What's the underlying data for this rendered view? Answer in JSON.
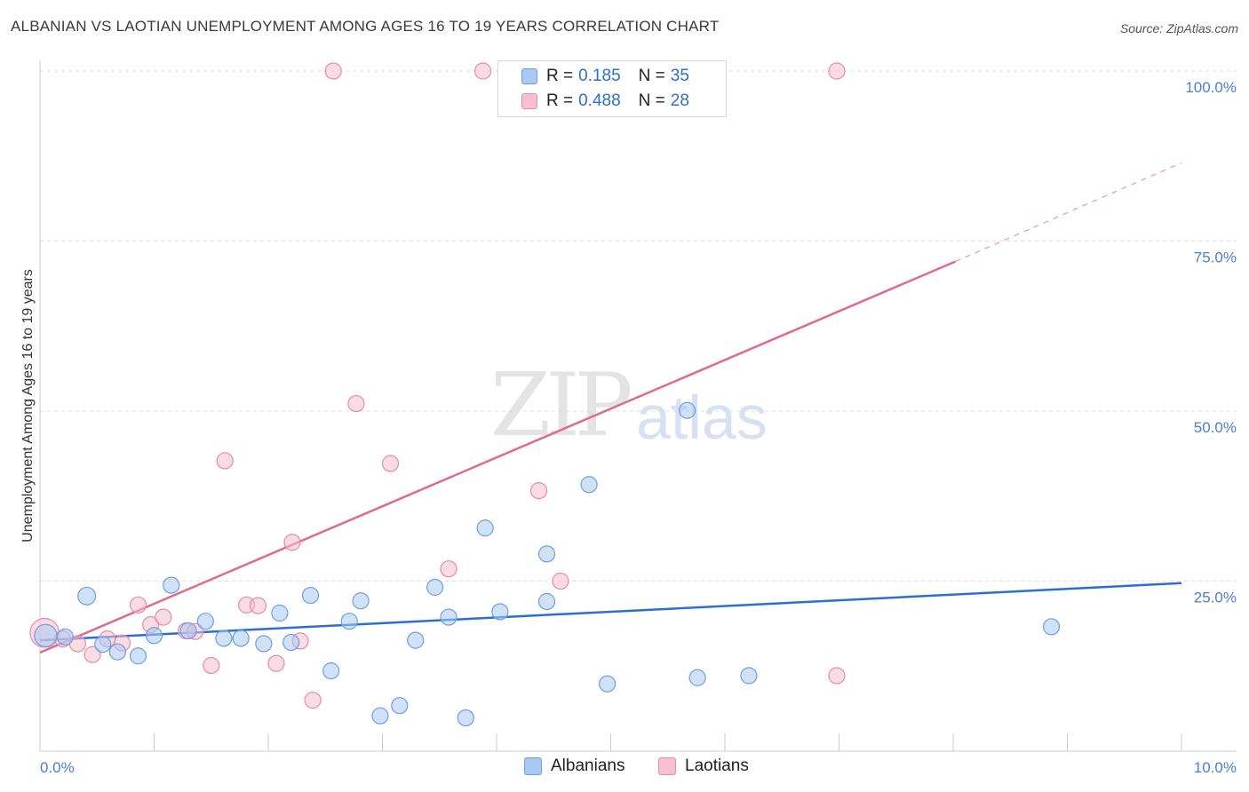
{
  "header": {
    "title": "ALBANIAN VS LAOTIAN UNEMPLOYMENT AMONG AGES 16 TO 19 YEARS CORRELATION CHART",
    "source": "Source: ZipAtlas.com"
  },
  "watermark": {
    "zip": "ZIP",
    "atlas": "atlas"
  },
  "legend": {
    "rows": [
      {
        "r_label": "R =",
        "r_value": "0.185",
        "n_label": "N =",
        "n_value": "35"
      },
      {
        "r_label": "R =",
        "r_value": "0.488",
        "n_label": "N =",
        "n_value": "28"
      }
    ]
  },
  "bottom_legend": {
    "albanians": "Albanians",
    "laotians": "Laotians"
  },
  "colors": {
    "albanians_fill": "#a9c8f2",
    "albanians_stroke": "#6d9fe0",
    "albanians_line": "#2b6fd4",
    "laotians_fill": "#f7bfd0",
    "laotians_stroke": "#e88aa8",
    "laotians_line": "#e0698f",
    "axis_label": "#4a7fd1"
  },
  "chart_data": {
    "type": "scatter",
    "title": "ALBANIAN VS LAOTIAN UNEMPLOYMENT AMONG AGES 16 TO 19 YEARS CORRELATION CHART",
    "xlabel": "",
    "ylabel": "Unemployment Among Ages 16 to 19 years",
    "xlim": [
      0,
      10
    ],
    "ylim": [
      0,
      100
    ],
    "x_tick_labels": [
      "0.0%",
      "10.0%"
    ],
    "y_tick_labels": [
      "100.0%",
      "75.0%",
      "50.0%",
      "25.0%"
    ],
    "y_ticks": [
      100,
      75,
      50,
      25
    ],
    "grid": true,
    "legend_position": "top-center",
    "series": [
      {
        "name": "Albanians",
        "r": 0.185,
        "n": 35,
        "trend": {
          "x": [
            0,
            10
          ],
          "y": [
            16.3,
            24.7
          ]
        },
        "points": [
          {
            "x": 0.05,
            "y": 17.0,
            "s": 1.4
          },
          {
            "x": 0.22,
            "y": 16.8,
            "s": 1
          },
          {
            "x": 0.41,
            "y": 22.8,
            "s": 1.1
          },
          {
            "x": 0.55,
            "y": 15.7,
            "s": 1
          },
          {
            "x": 0.68,
            "y": 14.6,
            "s": 1
          },
          {
            "x": 0.86,
            "y": 14.0,
            "s": 1
          },
          {
            "x": 1.0,
            "y": 17.0,
            "s": 1
          },
          {
            "x": 1.15,
            "y": 24.4,
            "s": 1
          },
          {
            "x": 1.3,
            "y": 17.7,
            "s": 1
          },
          {
            "x": 1.45,
            "y": 19.1,
            "s": 1
          },
          {
            "x": 1.61,
            "y": 16.6,
            "s": 1
          },
          {
            "x": 1.76,
            "y": 16.6,
            "s": 1
          },
          {
            "x": 1.96,
            "y": 15.8,
            "s": 1
          },
          {
            "x": 2.1,
            "y": 20.3,
            "s": 1
          },
          {
            "x": 2.2,
            "y": 16.0,
            "s": 1
          },
          {
            "x": 2.37,
            "y": 22.9,
            "s": 1
          },
          {
            "x": 2.55,
            "y": 11.8,
            "s": 1
          },
          {
            "x": 2.71,
            "y": 19.1,
            "s": 1
          },
          {
            "x": 2.81,
            "y": 22.1,
            "s": 1
          },
          {
            "x": 2.98,
            "y": 5.2,
            "s": 1
          },
          {
            "x": 3.15,
            "y": 6.7,
            "s": 1
          },
          {
            "x": 3.29,
            "y": 16.3,
            "s": 1
          },
          {
            "x": 3.46,
            "y": 24.1,
            "s": 1
          },
          {
            "x": 3.58,
            "y": 19.7,
            "s": 1
          },
          {
            "x": 3.73,
            "y": 4.9,
            "s": 1
          },
          {
            "x": 3.9,
            "y": 32.8,
            "s": 1
          },
          {
            "x": 4.03,
            "y": 20.5,
            "s": 1
          },
          {
            "x": 4.44,
            "y": 29.0,
            "s": 1
          },
          {
            "x": 4.44,
            "y": 22.0,
            "s": 1
          },
          {
            "x": 4.81,
            "y": 39.2,
            "s": 1
          },
          {
            "x": 4.97,
            "y": 9.9,
            "s": 1
          },
          {
            "x": 5.67,
            "y": 50.1,
            "s": 1
          },
          {
            "x": 5.76,
            "y": 10.8,
            "s": 1
          },
          {
            "x": 6.21,
            "y": 11.1,
            "s": 1
          },
          {
            "x": 8.86,
            "y": 18.3,
            "s": 1
          }
        ]
      },
      {
        "name": "Laotians",
        "r": 0.488,
        "n": 28,
        "trend": {
          "x": [
            0,
            8.02
          ],
          "y": [
            14.5,
            72.0
          ]
        },
        "trend_dashed": {
          "x": [
            8.02,
            10
          ],
          "y": [
            72.0,
            86.5
          ]
        },
        "points": [
          {
            "x": 0.04,
            "y": 17.4,
            "s": 1.8
          },
          {
            "x": 0.2,
            "y": 16.5,
            "s": 1
          },
          {
            "x": 0.33,
            "y": 15.8,
            "s": 1
          },
          {
            "x": 0.46,
            "y": 14.2,
            "s": 1
          },
          {
            "x": 0.59,
            "y": 16.5,
            "s": 1
          },
          {
            "x": 0.72,
            "y": 15.9,
            "s": 1
          },
          {
            "x": 0.86,
            "y": 21.5,
            "s": 1
          },
          {
            "x": 0.97,
            "y": 18.6,
            "s": 1
          },
          {
            "x": 1.08,
            "y": 19.7,
            "s": 1
          },
          {
            "x": 1.28,
            "y": 17.7,
            "s": 1
          },
          {
            "x": 1.36,
            "y": 17.6,
            "s": 1
          },
          {
            "x": 1.5,
            "y": 12.6,
            "s": 1
          },
          {
            "x": 1.62,
            "y": 42.7,
            "s": 1
          },
          {
            "x": 1.81,
            "y": 21.5,
            "s": 1
          },
          {
            "x": 1.91,
            "y": 21.4,
            "s": 1
          },
          {
            "x": 2.07,
            "y": 12.9,
            "s": 1
          },
          {
            "x": 2.21,
            "y": 30.7,
            "s": 1
          },
          {
            "x": 2.28,
            "y": 16.2,
            "s": 1
          },
          {
            "x": 2.39,
            "y": 7.5,
            "s": 1
          },
          {
            "x": 2.57,
            "y": 100.0,
            "s": 1
          },
          {
            "x": 2.77,
            "y": 51.1,
            "s": 1
          },
          {
            "x": 3.07,
            "y": 42.3,
            "s": 1
          },
          {
            "x": 3.58,
            "y": 26.8,
            "s": 1
          },
          {
            "x": 3.88,
            "y": 100.0,
            "s": 1
          },
          {
            "x": 4.37,
            "y": 38.3,
            "s": 1
          },
          {
            "x": 4.56,
            "y": 25.0,
            "s": 1
          },
          {
            "x": 6.98,
            "y": 100.0,
            "s": 1
          },
          {
            "x": 6.98,
            "y": 11.1,
            "s": 1
          }
        ]
      }
    ]
  }
}
